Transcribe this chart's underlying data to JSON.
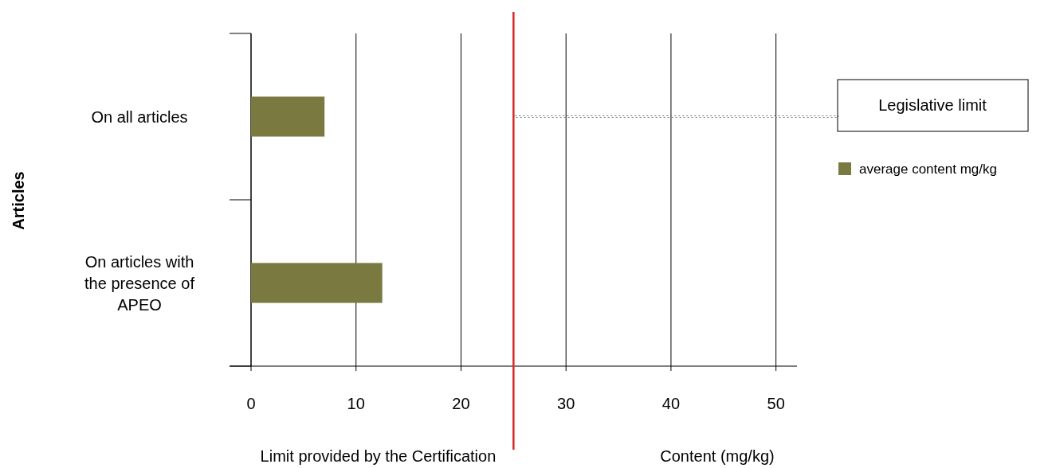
{
  "chart_data": {
    "type": "bar",
    "orientation": "horizontal",
    "xlabel": "Content (mg/kg)",
    "ylabel": "Articles",
    "categories": [
      "On all articles",
      "On articles with the presence of APEO"
    ],
    "series": [
      {
        "name": "average content mg/kg",
        "color": "#7a7a40",
        "values": [
          7,
          12.5
        ]
      }
    ],
    "xlim": [
      0,
      52
    ],
    "xticks": [
      0,
      10,
      20,
      30,
      40,
      50
    ],
    "grid": "x",
    "legend": "right",
    "ref_lines": [
      {
        "axis": "x",
        "value": 25,
        "label": "Limit provided by the Certification",
        "color": "#d42a2a"
      }
    ],
    "annotations": [
      "Legislative limit"
    ]
  }
}
